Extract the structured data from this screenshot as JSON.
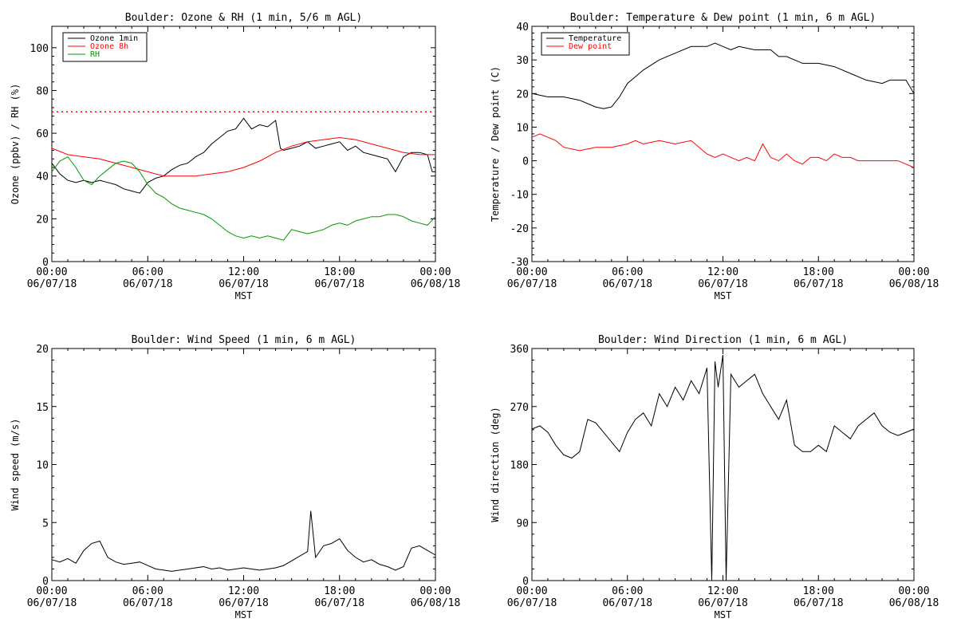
{
  "chart_data": [
    {
      "type": "line",
      "title": "Boulder: Ozone & RH (1 min, 5/6 m AGL)",
      "xlabel": "MST",
      "ylabel": "Ozone (ppbv) / RH (%)",
      "xlim": [
        "2018-06-07 00:00",
        "2018-06-08 00:00"
      ],
      "ylim": [
        0,
        110
      ],
      "yticks": [
        0,
        20,
        40,
        60,
        80,
        100
      ],
      "xticks": [
        "00:00\n06/07/18",
        "06:00\n06/07/18",
        "12:00\n06/07/18",
        "18:00\n06/07/18",
        "00:00\n06/08/18"
      ],
      "legend": "top-left",
      "grid": false,
      "reference_line": {
        "y": 70,
        "color": "#ff0000",
        "style": "dotted"
      },
      "series": [
        {
          "name": "Ozone 1min",
          "color": "#000000",
          "x_hours": [
            0,
            0.5,
            1,
            1.5,
            2,
            2.5,
            3,
            3.5,
            4,
            4.5,
            5,
            5.5,
            6,
            6.5,
            7,
            7.5,
            8,
            8.5,
            9,
            9.5,
            10,
            10.5,
            11,
            11.5,
            12,
            12.5,
            13,
            13.5,
            14,
            14.3,
            14.5,
            15,
            15.5,
            16,
            16.5,
            17,
            17.5,
            18,
            18.5,
            19,
            19.5,
            20,
            20.5,
            21,
            21.5,
            22,
            22.5,
            23,
            23.5,
            23.8,
            24
          ],
          "values": [
            46,
            41,
            38,
            37,
            38,
            37,
            38,
            37,
            36,
            34,
            33,
            32,
            37,
            39,
            40,
            43,
            45,
            46,
            49,
            51,
            55,
            58,
            61,
            62,
            67,
            62,
            64,
            63,
            66,
            53,
            52,
            53,
            54,
            56,
            53,
            54,
            55,
            56,
            52,
            54,
            51,
            50,
            49,
            48,
            42,
            49,
            51,
            51,
            50,
            42,
            42
          ]
        },
        {
          "name": "Ozone 8h",
          "color": "#ff0000",
          "x_hours": [
            0,
            1,
            2,
            3,
            4,
            5,
            6,
            7,
            8,
            9,
            10,
            11,
            12,
            13,
            14,
            15,
            16,
            17,
            18,
            19,
            20,
            21,
            22,
            23,
            24
          ],
          "values": [
            53,
            50,
            49,
            48,
            46,
            44,
            42,
            40,
            40,
            40,
            41,
            42,
            44,
            47,
            51,
            54,
            56,
            57,
            58,
            57,
            55,
            53,
            51,
            50,
            50
          ]
        },
        {
          "name": "RH",
          "color": "#009900",
          "x_hours": [
            0,
            0.5,
            1,
            1.5,
            2,
            2.5,
            3,
            3.5,
            4,
            4.5,
            5,
            5.5,
            6,
            6.5,
            7,
            7.5,
            8,
            8.5,
            9,
            9.5,
            10,
            10.5,
            11,
            11.5,
            12,
            12.5,
            13,
            13.5,
            14,
            14.5,
            15,
            15.5,
            16,
            16.5,
            17,
            17.5,
            18,
            18.5,
            19,
            19.5,
            20,
            20.5,
            21,
            21.5,
            22,
            22.5,
            23,
            23.5,
            24
          ],
          "values": [
            42,
            47,
            49,
            44,
            38,
            36,
            40,
            43,
            46,
            47,
            46,
            42,
            36,
            32,
            30,
            27,
            25,
            24,
            23,
            22,
            20,
            17,
            14,
            12,
            11,
            12,
            11,
            12,
            11,
            10,
            15,
            14,
            13,
            14,
            15,
            17,
            18,
            17,
            19,
            20,
            21,
            21,
            22,
            22,
            21,
            19,
            18,
            17,
            21
          ]
        }
      ]
    },
    {
      "type": "line",
      "title": "Boulder: Temperature & Dew point (1 min, 6 m AGL)",
      "xlabel": "MST",
      "ylabel": "Temperature / Dew point (C)",
      "xlim": [
        "2018-06-07 00:00",
        "2018-06-08 00:00"
      ],
      "ylim": [
        -30,
        40
      ],
      "yticks": [
        -30,
        -20,
        -10,
        0,
        10,
        20,
        30,
        40
      ],
      "xticks": [
        "00:00\n06/07/18",
        "06:00\n06/07/18",
        "12:00\n06/07/18",
        "18:00\n06/07/18",
        "00:00\n06/08/18"
      ],
      "legend": "top-left",
      "grid": false,
      "series": [
        {
          "name": "Temperature",
          "color": "#000000",
          "x_hours": [
            0,
            1,
            2,
            3,
            4,
            4.5,
            5,
            5.5,
            6,
            6.5,
            7,
            8,
            9,
            10,
            11,
            11.5,
            12,
            12.5,
            13,
            14,
            15,
            15.5,
            16,
            17,
            18,
            19,
            20,
            21,
            22,
            22.5,
            23,
            23.5,
            24
          ],
          "values": [
            20,
            19,
            19,
            18,
            16,
            15.5,
            16,
            19,
            23,
            25,
            27,
            30,
            32,
            34,
            34,
            35,
            34,
            33,
            34,
            33,
            33,
            31,
            31,
            29,
            29,
            28,
            26,
            24,
            23,
            24,
            24,
            24,
            20
          ]
        },
        {
          "name": "Dew point",
          "color": "#ff0000",
          "x_hours": [
            0,
            0.5,
            1,
            1.5,
            2,
            3,
            4,
            5,
            6,
            6.5,
            7,
            8,
            9,
            10,
            10.5,
            11,
            11.5,
            12,
            12.5,
            13,
            13.5,
            14,
            14.5,
            15,
            15.5,
            16,
            16.5,
            17,
            17.5,
            18,
            18.5,
            19,
            19.5,
            20,
            20.5,
            21,
            22,
            23,
            23.5,
            24
          ],
          "values": [
            7,
            8,
            7,
            6,
            4,
            3,
            4,
            4,
            5,
            6,
            5,
            6,
            5,
            6,
            4,
            2,
            1,
            2,
            1,
            0,
            1,
            0,
            5,
            1,
            0,
            2,
            0,
            -1,
            1,
            1,
            0,
            2,
            1,
            1,
            0,
            0,
            0,
            0,
            -1,
            -2
          ]
        }
      ]
    },
    {
      "type": "line",
      "title": "Boulder: Wind Speed (1 min, 6 m AGL)",
      "xlabel": "MST",
      "ylabel": "Wind speed (m/s)",
      "xlim": [
        "2018-06-07 00:00",
        "2018-06-08 00:00"
      ],
      "ylim": [
        0,
        20
      ],
      "yticks": [
        0,
        5,
        10,
        15,
        20
      ],
      "xticks": [
        "00:00\n06/07/18",
        "06:00\n06/07/18",
        "12:00\n06/07/18",
        "18:00\n06/07/18",
        "00:00\n06/08/18"
      ],
      "grid": false,
      "series": [
        {
          "color": "#000000",
          "x_hours": [
            0,
            0.5,
            1,
            1.5,
            2,
            2.5,
            3,
            3.5,
            4,
            4.5,
            5,
            5.5,
            6,
            6.5,
            7,
            7.5,
            8,
            8.5,
            9,
            9.5,
            10,
            10.5,
            11,
            11.5,
            12,
            12.5,
            13,
            13.5,
            14,
            14.5,
            15,
            15.5,
            16,
            16.2,
            16.5,
            17,
            17.5,
            18,
            18.5,
            19,
            19.5,
            20,
            20.5,
            21,
            21.5,
            22,
            22.5,
            23,
            23.5,
            24
          ],
          "values": [
            1.8,
            1.6,
            1.9,
            1.5,
            2.6,
            3.2,
            3.4,
            2.0,
            1.6,
            1.4,
            1.5,
            1.6,
            1.3,
            1.0,
            0.9,
            0.8,
            0.9,
            1.0,
            1.1,
            1.2,
            1.0,
            1.1,
            0.9,
            1.0,
            1.1,
            1.0,
            0.9,
            1.0,
            1.1,
            1.3,
            1.7,
            2.1,
            2.5,
            6.0,
            2.0,
            3.0,
            3.2,
            3.6,
            2.6,
            2.0,
            1.6,
            1.8,
            1.4,
            1.2,
            0.9,
            1.2,
            2.8,
            3.0,
            2.6,
            2.2
          ]
        }
      ]
    },
    {
      "type": "line",
      "title": "Boulder: Wind Direction (1 min, 6 m AGL)",
      "xlabel": "MST",
      "ylabel": "Wind direction (deg)",
      "xlim": [
        "2018-06-07 00:00",
        "2018-06-08 00:00"
      ],
      "ylim": [
        0,
        360
      ],
      "yticks": [
        0,
        90,
        180,
        270,
        360
      ],
      "xticks": [
        "00:00\n06/07/18",
        "06:00\n06/07/18",
        "12:00\n06/07/18",
        "18:00\n06/07/18",
        "00:00\n06/08/18"
      ],
      "grid": false,
      "series": [
        {
          "color": "#000000",
          "x_hours": [
            0,
            0.5,
            1,
            1.5,
            2,
            2.5,
            3,
            3.5,
            4,
            4.5,
            5,
            5.5,
            6,
            6.5,
            7,
            7.5,
            8,
            8.5,
            9,
            9.5,
            10,
            10.5,
            11,
            11.3,
            11.5,
            11.7,
            12,
            12.2,
            12.5,
            13,
            13.5,
            14,
            14.5,
            15,
            15.5,
            16,
            16.5,
            17,
            17.5,
            18,
            18.5,
            19,
            19.5,
            20,
            20.5,
            21,
            21.5,
            22,
            22.5,
            23,
            23.5,
            24
          ],
          "values": [
            235,
            240,
            230,
            210,
            195,
            190,
            200,
            250,
            245,
            230,
            215,
            200,
            230,
            250,
            260,
            240,
            290,
            270,
            300,
            280,
            310,
            290,
            330,
            0,
            340,
            300,
            350,
            0,
            320,
            300,
            310,
            320,
            290,
            270,
            250,
            280,
            210,
            200,
            200,
            210,
            200,
            240,
            230,
            220,
            240,
            250,
            260,
            240,
            230,
            225,
            230,
            235
          ]
        }
      ]
    }
  ]
}
